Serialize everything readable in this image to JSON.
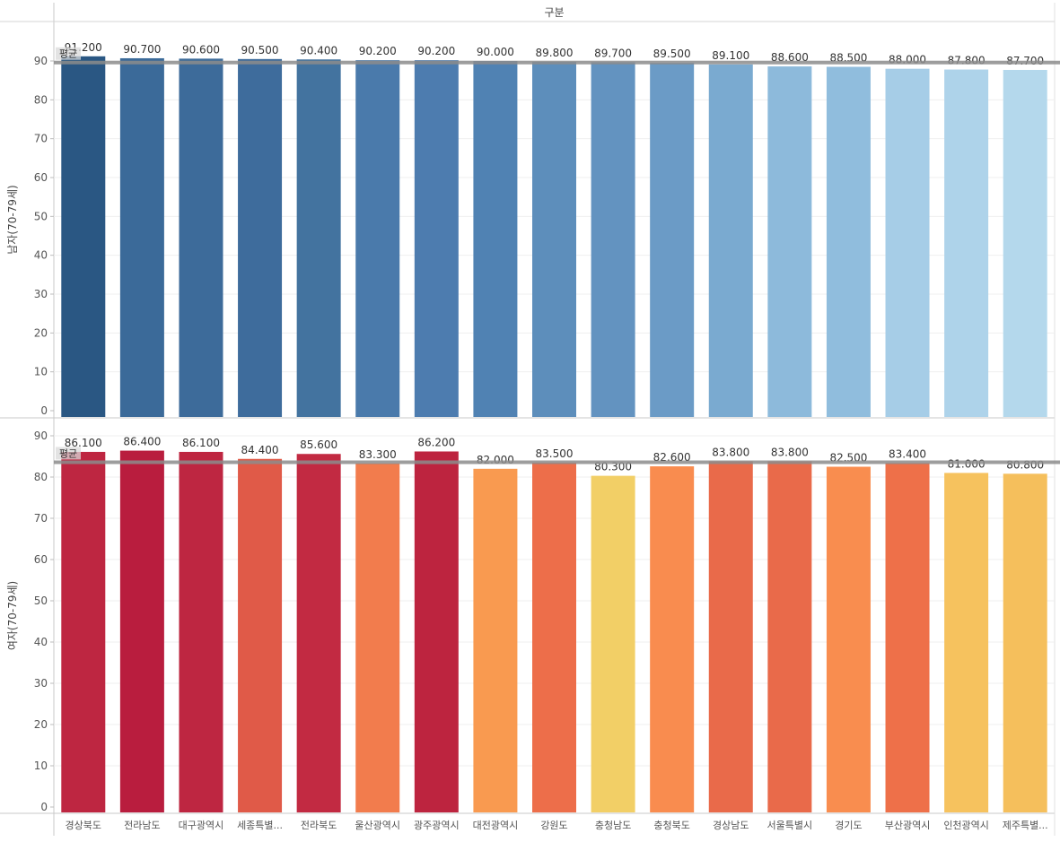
{
  "chart_data": {
    "type": "bar",
    "header": "구분",
    "categories": [
      "경상북도",
      "전라남도",
      "대구광역시",
      "세종특별...",
      "전라북도",
      "울산광역시",
      "광주광역시",
      "대전광역시",
      "강원도",
      "충청남도",
      "충청북도",
      "경상남도",
      "서울특별시",
      "경기도",
      "부산광역시",
      "인천광역시",
      "제주특별..."
    ],
    "panels": [
      {
        "ylabel": "남자(70-79세)",
        "values": [
          91.2,
          90.7,
          90.6,
          90.5,
          90.4,
          90.2,
          90.2,
          90.0,
          89.8,
          89.7,
          89.5,
          89.1,
          88.6,
          88.5,
          88.0,
          87.8,
          87.7
        ],
        "value_labels": [
          "91.200",
          "90.700",
          "90.600",
          "90.500",
          "90.400",
          "90.200",
          "90.200",
          "90.000",
          "89.800",
          "89.700",
          "89.500",
          "89.100",
          "88.600",
          "88.500",
          "88.000",
          "87.800",
          "87.700"
        ],
        "yticks": [
          "0",
          "10",
          "20",
          "30",
          "40",
          "50",
          "60",
          "70",
          "80",
          "90"
        ],
        "ylim": [
          0,
          95
        ],
        "reference_line": {
          "label": "평균",
          "value": 89.6
        },
        "color_scale": "blue (darker = higher)",
        "colors": [
          "#2a5783",
          "#3b6a99",
          "#3d6b9a",
          "#3e6c9c",
          "#43739f",
          "#4a7aab",
          "#4d7caf",
          "#5082b3",
          "#5d8ebb",
          "#6393c0",
          "#6b9bc6",
          "#7aaad0",
          "#8dbadb",
          "#90bddd",
          "#a6cde7",
          "#aed3ea",
          "#b4d8ec"
        ]
      },
      {
        "ylabel": "여자(70-79세)",
        "values": [
          86.1,
          86.4,
          86.1,
          84.4,
          85.6,
          83.3,
          86.2,
          82.0,
          83.5,
          80.3,
          82.6,
          83.8,
          83.8,
          82.5,
          83.4,
          81.0,
          80.8
        ],
        "value_labels": [
          "86.100",
          "86.400",
          "86.100",
          "84.400",
          "85.600",
          "83.300",
          "86.200",
          "82.000",
          "83.500",
          "80.300",
          "82.600",
          "83.800",
          "83.800",
          "82.500",
          "83.400",
          "81.000",
          "80.800"
        ],
        "yticks": [
          "0",
          "10",
          "20",
          "30",
          "40",
          "50",
          "60",
          "70",
          "80",
          "90"
        ],
        "ylim": [
          0,
          91
        ],
        "reference_line": {
          "label": "평균",
          "value": 83.6
        },
        "color_scale": "orange-red diverging",
        "colors": [
          "#be2641",
          "#b91d3e",
          "#be2641",
          "#e05a48",
          "#c22a42",
          "#f27c4d",
          "#bd243f",
          "#f99a50",
          "#ed6e4a",
          "#f2cf66",
          "#f98c4f",
          "#e96a4a",
          "#e96a4a",
          "#f98d4f",
          "#ee7049",
          "#f6c25e",
          "#f5bf5c"
        ]
      }
    ],
    "grid": true,
    "legend": "none"
  }
}
